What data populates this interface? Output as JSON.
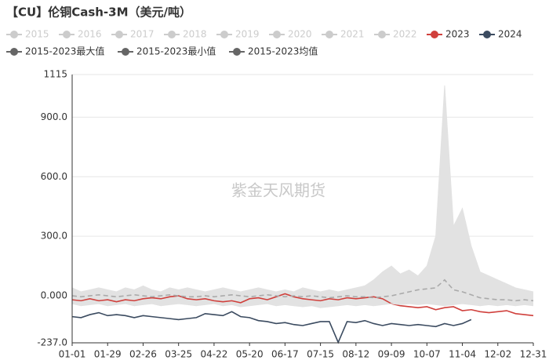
{
  "chart_data": {
    "type": "line",
    "title": "【CU】伦铜Cash-3M（美元/吨）",
    "watermark": "紫金天风期货",
    "legend_hidden": [
      "2015",
      "2016",
      "2017",
      "2018",
      "2019",
      "2020",
      "2021",
      "2022"
    ],
    "categories": [
      "01-01",
      null,
      null,
      null,
      "01-29",
      null,
      null,
      null,
      "02-26",
      null,
      null,
      null,
      "03-25",
      null,
      null,
      null,
      "04-22",
      null,
      null,
      null,
      "05-20",
      null,
      null,
      null,
      "06-17",
      null,
      null,
      null,
      "07-15",
      null,
      null,
      null,
      "08-12",
      null,
      null,
      null,
      "09-09",
      null,
      null,
      null,
      "10-07",
      null,
      null,
      null,
      "11-04",
      null,
      null,
      null,
      "12-02",
      null,
      null,
      null,
      "12-31"
    ],
    "ylim": [
      -237,
      1115
    ],
    "yticks": [
      {
        "value": -237,
        "label": "-237.0"
      },
      {
        "value": 0,
        "label": "0.000"
      },
      {
        "value": 300,
        "label": "300.0"
      },
      {
        "value": 600,
        "label": "600.0"
      },
      {
        "value": 900,
        "label": "900.0"
      },
      1115
    ],
    "grid": true,
    "band_color": "#e2e2e2",
    "series": [
      {
        "name": "2023",
        "color": "#d0403c",
        "values": [
          -20,
          -25,
          -15,
          -25,
          -20,
          -30,
          -20,
          -25,
          -15,
          -10,
          -15,
          -5,
          0,
          -15,
          -20,
          -15,
          -25,
          -30,
          -25,
          -35,
          -15,
          -10,
          -20,
          -5,
          10,
          -5,
          -15,
          -20,
          -25,
          -15,
          -20,
          -10,
          -15,
          -10,
          -5,
          -15,
          -40,
          -50,
          -55,
          -60,
          -55,
          -70,
          -60,
          -55,
          -75,
          -70,
          -80,
          -85,
          -80,
          -75,
          -90,
          -95,
          -100
        ]
      },
      {
        "name": "2024",
        "color": "#3b4b60",
        "values": [
          -105,
          -110,
          -95,
          -85,
          -100,
          -95,
          -100,
          -110,
          -100,
          -105,
          -110,
          -115,
          -120,
          -115,
          -110,
          -90,
          -95,
          -100,
          -80,
          -105,
          -110,
          -125,
          -130,
          -140,
          -135,
          -145,
          -150,
          -140,
          -130,
          -130,
          -235,
          -130,
          -135,
          -125,
          -140,
          -150,
          -140,
          -145,
          -150,
          -145,
          -150,
          -155,
          -140,
          -150,
          -140,
          -120,
          null,
          null,
          null,
          null,
          null,
          null,
          null
        ]
      },
      {
        "name": "2015-2023最大值",
        "color": "#666666",
        "area": "upper",
        "values": [
          40,
          20,
          30,
          40,
          30,
          20,
          40,
          30,
          50,
          30,
          20,
          40,
          30,
          40,
          30,
          20,
          30,
          40,
          30,
          20,
          30,
          40,
          30,
          20,
          30,
          20,
          40,
          30,
          20,
          30,
          20,
          30,
          40,
          50,
          80,
          120,
          150,
          110,
          130,
          100,
          150,
          300,
          1060,
          350,
          440,
          250,
          120,
          100,
          80,
          60,
          40,
          30,
          20
        ]
      },
      {
        "name": "2015-2023最小值",
        "color": "#666666",
        "area": "lower",
        "values": [
          -40,
          -50,
          -45,
          -40,
          -50,
          -45,
          -40,
          -50,
          -45,
          -40,
          -50,
          -45,
          -40,
          -45,
          -50,
          -45,
          -40,
          -50,
          -45,
          -55,
          -50,
          -45,
          -40,
          -50,
          -45,
          -50,
          -55,
          -50,
          -60,
          -55,
          -50,
          -45,
          -50,
          -45,
          -50,
          -45,
          -40,
          -45,
          -40,
          -45,
          -40,
          -45,
          -50,
          -45,
          -40,
          -45,
          -50,
          -45,
          -50,
          -45,
          -50,
          -45,
          -50
        ]
      },
      {
        "name": "2015-2023均值",
        "color": "#666666",
        "dashed": true,
        "mean_color": "#aaaaaa",
        "values": [
          0,
          -5,
          0,
          5,
          0,
          -5,
          0,
          5,
          0,
          -5,
          0,
          5,
          0,
          -5,
          -5,
          0,
          -5,
          0,
          5,
          0,
          -5,
          0,
          5,
          0,
          -5,
          0,
          -5,
          0,
          -5,
          -10,
          -5,
          0,
          -5,
          -5,
          -10,
          -5,
          0,
          10,
          20,
          30,
          35,
          40,
          80,
          30,
          20,
          5,
          -10,
          -15,
          -20,
          -20,
          -25,
          -20,
          -25
        ]
      }
    ]
  }
}
